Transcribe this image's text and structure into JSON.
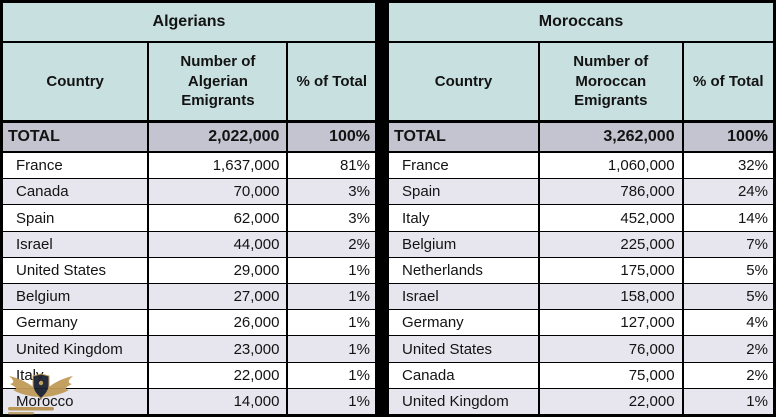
{
  "chart_data": [
    {
      "type": "table",
      "title": "Algerians",
      "columns": [
        "Country",
        "Number of Algerian Emigrants",
        "% of Total"
      ],
      "total_row": {
        "country": "TOTAL",
        "number": "2,022,000",
        "percent": "100%"
      },
      "rows": [
        {
          "country": "France",
          "number": "1,637,000",
          "percent": "81%"
        },
        {
          "country": "Canada",
          "number": "70,000",
          "percent": "3%"
        },
        {
          "country": "Spain",
          "number": "62,000",
          "percent": "3%"
        },
        {
          "country": "Israel",
          "number": "44,000",
          "percent": "2%"
        },
        {
          "country": "United States",
          "number": "29,000",
          "percent": "1%"
        },
        {
          "country": "Belgium",
          "number": "27,000",
          "percent": "1%"
        },
        {
          "country": "Germany",
          "number": "26,000",
          "percent": "1%"
        },
        {
          "country": "United Kingdom",
          "number": "23,000",
          "percent": "1%"
        },
        {
          "country": "Italy",
          "number": "22,000",
          "percent": "1%"
        },
        {
          "country": "Morocco",
          "number": "14,000",
          "percent": "1%"
        }
      ]
    },
    {
      "type": "table",
      "title": "Moroccans",
      "columns": [
        "Country",
        "Number of Moroccan Emigrants",
        "% of Total"
      ],
      "total_row": {
        "country": "TOTAL",
        "number": "3,262,000",
        "percent": "100%"
      },
      "rows": [
        {
          "country": "France",
          "number": "1,060,000",
          "percent": "32%"
        },
        {
          "country": "Spain",
          "number": "786,000",
          "percent": "24%"
        },
        {
          "country": "Italy",
          "number": "452,000",
          "percent": "14%"
        },
        {
          "country": "Belgium",
          "number": "225,000",
          "percent": "7%"
        },
        {
          "country": "Netherlands",
          "number": "175,000",
          "percent": "5%"
        },
        {
          "country": "Israel",
          "number": "158,000",
          "percent": "5%"
        },
        {
          "country": "Germany",
          "number": "127,000",
          "percent": "4%"
        },
        {
          "country": "United States",
          "number": "76,000",
          "percent": "2%"
        },
        {
          "country": "Canada",
          "number": "75,000",
          "percent": "2%"
        },
        {
          "country": "United Kingdom",
          "number": "22,000",
          "percent": "1%"
        }
      ]
    }
  ],
  "colors": {
    "header_teal": "#c9e0e0",
    "total_row_lavender": "#c4c3d0",
    "alt_row_lavender": "#e7e5ee",
    "border_black": "#000000",
    "watermark_gold": "#c09a58",
    "watermark_navy": "#1b2130"
  },
  "watermark": {
    "icon": "eagle-shield-emblem"
  }
}
